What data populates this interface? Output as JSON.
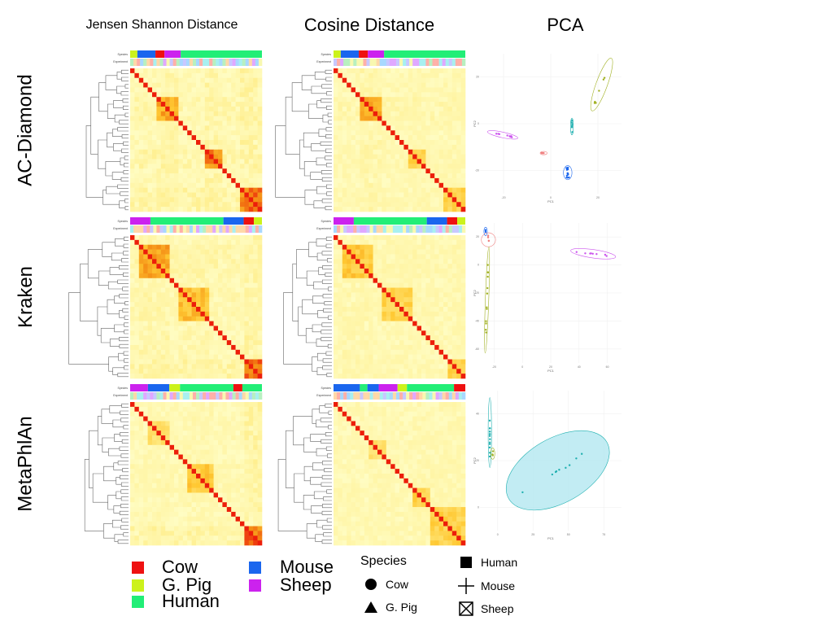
{
  "column_titles": [
    "Jensen Shannon Distance",
    "Cosine Distance",
    "PCA"
  ],
  "row_titles": [
    "AC-Diamond",
    "Kraken",
    "MetaPhlAn"
  ],
  "annotation_labels": {
    "species": "Species",
    "experiment": "Experiment"
  },
  "pca_axis_labels": {
    "x": "PC1",
    "y": "PC2"
  },
  "colors": {
    "Cow": "#ee1111",
    "G. Pig": "#ccf21c",
    "Human": "#22ee77",
    "Mouse": "#1a66ee",
    "Sheep": "#cc22ee",
    "heat_low": "#ffffcc",
    "heat_mid": "#ffcc33",
    "heat_high": "#f08a10",
    "heat_max": "#ee1100"
  },
  "legend": {
    "species_colors": [
      {
        "label": "Cow",
        "color": "#ee1111"
      },
      {
        "label": "G. Pig",
        "color": "#ccf21c"
      },
      {
        "label": "Human",
        "color": "#22ee77"
      },
      {
        "label": "Mouse",
        "color": "#1a66ee"
      },
      {
        "label": "Sheep",
        "color": "#cc22ee"
      }
    ],
    "shape_title": "Species",
    "species_shapes": [
      {
        "label": "Cow",
        "shape": "circle"
      },
      {
        "label": "G. Pig",
        "shape": "triangle"
      },
      {
        "label": "Human",
        "shape": "square"
      },
      {
        "label": "Mouse",
        "shape": "plus"
      },
      {
        "label": "Sheep",
        "shape": "boxed-x"
      }
    ]
  },
  "heatmaps": [
    {
      "row": "AC-Diamond",
      "metric": "Jensen Shannon Distance",
      "species_order": [
        "G. Pig",
        "Mouse",
        "Cow",
        "Sheep",
        "Human"
      ],
      "species_weights": [
        4,
        10,
        5,
        9,
        45
      ],
      "blocks": [
        [
          0.18,
          0.35,
          0.8
        ],
        [
          0.55,
          0.68,
          0.9
        ],
        [
          0.82,
          1.0,
          0.95
        ]
      ]
    },
    {
      "row": "AC-Diamond",
      "metric": "Cosine Distance",
      "species_order": [
        "G. Pig",
        "Mouse",
        "Cow",
        "Sheep",
        "Human"
      ],
      "species_weights": [
        4,
        10,
        5,
        9,
        45
      ],
      "blocks": [
        [
          0.18,
          0.35,
          0.75
        ],
        [
          0.55,
          0.68,
          0.6
        ],
        [
          0.82,
          1.0,
          0.6
        ]
      ]
    },
    {
      "row": "Kraken",
      "metric": "Jensen Shannon Distance",
      "species_order": [
        "Sheep",
        "Human",
        "Mouse",
        "Cow",
        "G. Pig"
      ],
      "species_weights": [
        10,
        36,
        10,
        5,
        4
      ],
      "blocks": [
        [
          0.05,
          0.3,
          0.8
        ],
        [
          0.35,
          0.6,
          0.7
        ],
        [
          0.85,
          1.0,
          0.95
        ]
      ]
    },
    {
      "row": "Kraken",
      "metric": "Cosine Distance",
      "species_order": [
        "Sheep",
        "Human",
        "Mouse",
        "Cow",
        "G. Pig"
      ],
      "species_weights": [
        10,
        36,
        10,
        5,
        4
      ],
      "blocks": [
        [
          0.05,
          0.3,
          0.65
        ],
        [
          0.35,
          0.6,
          0.6
        ],
        [
          0.85,
          1.0,
          0.6
        ]
      ]
    },
    {
      "row": "MetaPhlAn",
      "metric": "Jensen Shannon Distance",
      "species_order": [
        "Sheep",
        "Mouse",
        "G. Pig",
        "Human",
        "Cow",
        "Human"
      ],
      "species_weights": [
        10,
        12,
        6,
        30,
        5,
        11
      ],
      "blocks": [
        [
          0.42,
          0.62,
          0.65
        ],
        [
          0.13,
          0.3,
          0.5
        ],
        [
          0.85,
          1.0,
          0.95
        ]
      ]
    },
    {
      "row": "MetaPhlAn",
      "metric": "Cosine Distance",
      "species_order": [
        "Mouse",
        "Human",
        "Mouse",
        "Sheep",
        "G. Pig",
        "Human",
        "Cow"
      ],
      "species_weights": [
        14,
        4,
        6,
        10,
        5,
        25,
        6
      ],
      "blocks": [
        [
          0.25,
          0.4,
          0.5
        ],
        [
          0.58,
          0.72,
          0.6
        ],
        [
          0.72,
          1.0,
          0.6
        ]
      ]
    }
  ],
  "pca": [
    {
      "row": "AC-Diamond",
      "x_ticks": [
        "-20",
        "0",
        "20"
      ],
      "y_ticks": [
        "20",
        "0",
        "-20"
      ],
      "clusters": [
        {
          "species": "G. Pig",
          "cx": 0.86,
          "cy": 0.22,
          "rx": 0.04,
          "ry": 0.2,
          "rot": 20,
          "npts": 6
        },
        {
          "species": "Sheep",
          "cx": 0.16,
          "cy": 0.58,
          "rx": 0.11,
          "ry": 0.02,
          "rot": 12,
          "npts": 8
        },
        {
          "species": "Cow",
          "cx": 0.45,
          "cy": 0.71,
          "rx": 0.025,
          "ry": 0.012,
          "rot": 0,
          "npts": 3
        },
        {
          "species": "Human",
          "cx": 0.65,
          "cy": 0.52,
          "rx": 0.01,
          "ry": 0.06,
          "rot": 0,
          "npts": 6
        },
        {
          "species": "Mouse",
          "cx": 0.62,
          "cy": 0.85,
          "rx": 0.03,
          "ry": 0.05,
          "rot": 0,
          "npts": 14
        }
      ]
    },
    {
      "row": "Kraken",
      "x_ticks": [
        "-20",
        "0",
        "20",
        "40",
        "60"
      ],
      "y_ticks": [
        "20",
        "0",
        "-20",
        "-40",
        "-60"
      ],
      "clusters": [
        {
          "species": "Cow",
          "cx": 0.06,
          "cy": 0.12,
          "rx": 0.05,
          "ry": 0.05,
          "rot": 0,
          "npts": 4
        },
        {
          "species": "G. Pig",
          "cx": 0.05,
          "cy": 0.55,
          "rx": 0.012,
          "ry": 0.38,
          "rot": 2,
          "npts": 12
        },
        {
          "species": "Sheep",
          "cx": 0.8,
          "cy": 0.22,
          "rx": 0.16,
          "ry": 0.03,
          "rot": 8,
          "npts": 8
        },
        {
          "species": "Mouse",
          "cx": 0.04,
          "cy": 0.06,
          "rx": 0.012,
          "ry": 0.03,
          "rot": 0,
          "npts": 3
        }
      ]
    },
    {
      "row": "MetaPhlAn",
      "x_ticks": [
        "0",
        "25",
        "50",
        "75"
      ],
      "y_ticks": [
        "40",
        "20",
        "0"
      ],
      "clusters": [
        {
          "species": "Human",
          "cx": 0.07,
          "cy": 0.3,
          "rx": 0.012,
          "ry": 0.25,
          "rot": 0,
          "npts": 14
        },
        {
          "species": "G. Pig",
          "cx": 0.09,
          "cy": 0.45,
          "rx": 0.015,
          "ry": 0.04,
          "rot": 0,
          "npts": 3
        },
        {
          "species": "Human",
          "cx": 0.55,
          "cy": 0.57,
          "rx": 0.4,
          "ry": 0.23,
          "rot": -30,
          "npts": 9
        }
      ]
    }
  ]
}
